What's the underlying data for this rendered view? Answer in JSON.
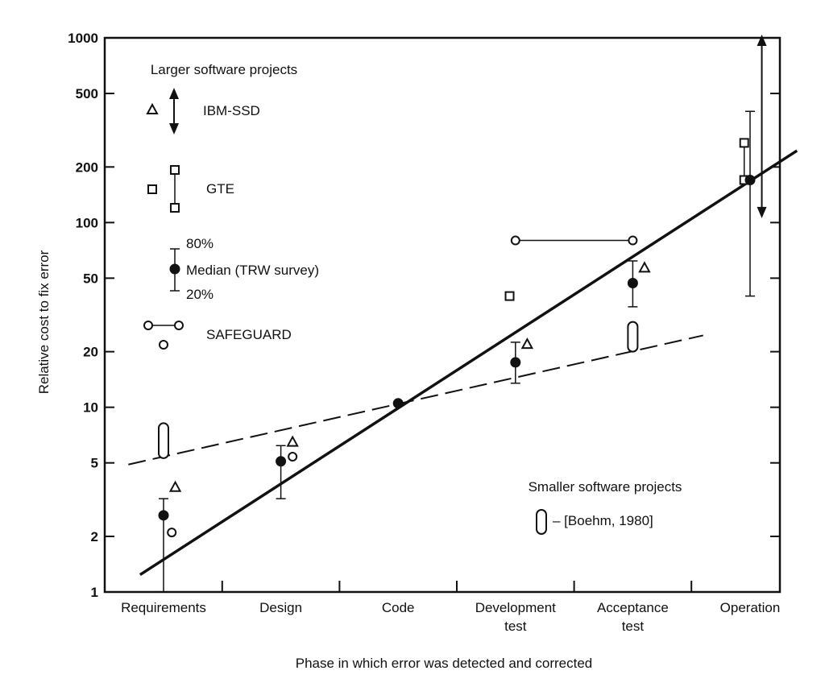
{
  "chart_data": {
    "type": "scatter",
    "y_scale": "log",
    "ylim": [
      1,
      1000
    ],
    "y_ticks": [
      "1",
      "2",
      "5",
      "10",
      "20",
      "50",
      "100",
      "200",
      "500",
      "1000"
    ],
    "ylabel": "Relative cost to fix error",
    "xlabel": "Phase in which error was detected and corrected",
    "categories": [
      [
        "Requirements"
      ],
      [
        "Design"
      ],
      [
        "Code"
      ],
      [
        "Development",
        "test"
      ],
      [
        "Acceptance",
        "test"
      ],
      [
        "Operation"
      ]
    ],
    "grid": false,
    "legend": {
      "larger_title": "Larger software projects",
      "ibm_label": "IBM-SSD",
      "gte_label": "GTE",
      "trw_hi": "80%",
      "trw_median": "Median (TRW survey)",
      "trw_lo": "20%",
      "safeguard_label": "SAFEGUARD",
      "smaller_title": "Smaller software projects",
      "boehm_label": "– [Boehm, 1980]"
    },
    "series": [
      {
        "name": "IBM-SSD",
        "marker": "triangle",
        "points": [
          {
            "x": 0.1,
            "y": 3.7
          },
          {
            "x": 1.1,
            "y": 6.5
          },
          {
            "x": 3.1,
            "y": 22
          },
          {
            "x": 4.1,
            "y": 57
          }
        ]
      },
      {
        "name": "IBM-SSD range",
        "marker": "double-arrow",
        "ranges": [
          {
            "x": 5.1,
            "y_low": 110,
            "y_high": 1000
          }
        ]
      },
      {
        "name": "GTE",
        "marker": "square",
        "points": [
          {
            "x": 2.95,
            "y": 40
          },
          {
            "x": 4.95,
            "y": 270
          },
          {
            "x": 4.95,
            "y": 170
          }
        ]
      },
      {
        "name": "Median (TRW survey)",
        "marker": "filled-circle",
        "points": [
          {
            "x": 0.0,
            "y": 2.6,
            "lo": 1,
            "hi": 3.2
          },
          {
            "x": 1.0,
            "y": 5.1,
            "lo": 3.2,
            "hi": 6.2
          },
          {
            "x": 2.0,
            "y": 10.5
          },
          {
            "x": 3.0,
            "y": 17.5,
            "lo": 13.5,
            "hi": 22.5
          },
          {
            "x": 4.0,
            "y": 47,
            "lo": 35,
            "hi": 62
          },
          {
            "x": 5.0,
            "y": 170,
            "lo": 40,
            "hi": 400
          }
        ]
      },
      {
        "name": "SAFEGUARD",
        "marker": "open-circle",
        "points": [
          {
            "x": 0.07,
            "y": 2.1
          },
          {
            "x": 1.1,
            "y": 5.4
          }
        ],
        "ranges": [
          {
            "x_from": 3.0,
            "x_to": 4.0,
            "y": 80
          }
        ]
      },
      {
        "name": "[Boehm, 1980]",
        "marker": "capsule",
        "ranges": [
          {
            "x": 0.0,
            "y_low": 5.3,
            "y_high": 8.2
          },
          {
            "x": 4.0,
            "y_low": 20,
            "y_high": 29
          }
        ]
      }
    ],
    "fit_lines": [
      {
        "style": "solid",
        "from": {
          "x": -0.2,
          "y": 1.24
        },
        "to": {
          "x": 5.4,
          "y": 245
        }
      },
      {
        "style": "dashed",
        "from": {
          "x": -0.3,
          "y": 4.9
        },
        "to": {
          "x": 4.6,
          "y": 24.5
        }
      }
    ]
  }
}
